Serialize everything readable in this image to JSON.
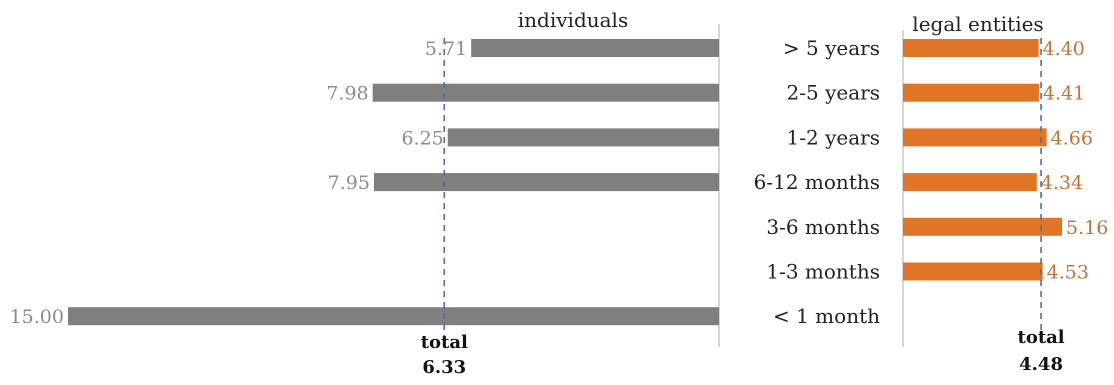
{
  "chart_data": {
    "type": "bar",
    "categories": [
      "> 5 years",
      "2-5 years",
      "1-2 years",
      "6-12 months",
      "3-6 months",
      "1-3 months",
      "< 1 month"
    ],
    "series": [
      {
        "name": "individuals",
        "values": [
          5.71,
          7.98,
          6.25,
          7.95,
          null,
          null,
          15.0
        ],
        "value_labels": [
          "5.71",
          "7.98",
          "6.25",
          "7.95",
          "",
          "",
          "15.00"
        ],
        "total_label": "total",
        "total_value": "6.33",
        "color": "#7f7f7f",
        "label_color": "#8c8c8c",
        "direction": "leftward"
      },
      {
        "name": "legal entities",
        "values": [
          4.4,
          4.41,
          4.66,
          4.34,
          5.16,
          4.53,
          null
        ],
        "value_labels": [
          "4.40",
          "4.41",
          "4.66",
          "4.34",
          "5.16",
          "4.53",
          ""
        ],
        "total_label": "total",
        "total_value": "4.48",
        "color": "#e07427",
        "label_color": "#c0733a",
        "direction": "rightward"
      }
    ],
    "reference_line_style": "dashed",
    "reference_line_color": "#4a6fa5",
    "grid": false,
    "legend": "none"
  }
}
